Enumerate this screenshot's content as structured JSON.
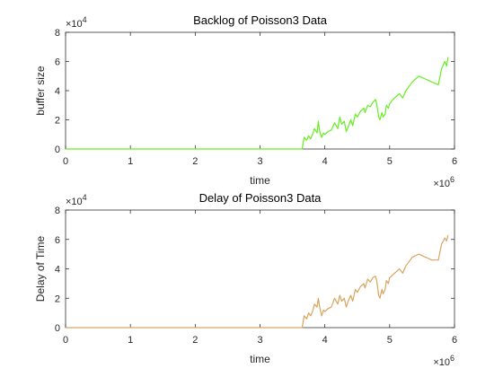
{
  "chart_data": [
    {
      "type": "line",
      "title": "Backlog of Poisson3 Data",
      "xlabel": "time",
      "ylabel": "buffer size",
      "xlim": [
        0,
        6000000
      ],
      "ylim": [
        0,
        80000
      ],
      "xticks": [
        0,
        1,
        2,
        3,
        4,
        5,
        6
      ],
      "yticks": [
        0,
        2,
        4,
        6,
        8
      ],
      "x_multiplier": "×10",
      "x_exponent": "6",
      "y_multiplier": "×10",
      "y_exponent": "4",
      "grid": false,
      "color": "#66ee22",
      "series": [
        {
          "x": [
            0,
            3000000,
            3650000,
            3680000,
            3720000,
            3750000,
            3780000,
            3810000,
            3840000,
            3880000,
            3900000,
            3920000,
            3950000,
            3980000,
            4000000,
            4050000,
            4100000,
            4150000,
            4200000,
            4230000,
            4260000,
            4300000,
            4330000,
            4360000,
            4400000,
            4430000,
            4470000,
            4500000,
            4550000,
            4600000,
            4620000,
            4660000,
            4700000,
            4740000,
            4780000,
            4800000,
            4830000,
            4850000,
            4880000,
            4900000,
            4930000,
            4950000,
            4980000,
            5000000,
            5050000,
            5100000,
            5150000,
            5200000,
            5250000,
            5300000,
            5350000,
            5400000,
            5450000,
            5500000,
            5550000,
            5600000,
            5650000,
            5700000,
            5750000,
            5800000,
            5830000,
            5850000,
            5880000,
            5900000
          ],
          "y": [
            0,
            0,
            0,
            8000,
            6000,
            9000,
            7000,
            10000,
            14000,
            11000,
            19000,
            12000,
            8000,
            11000,
            10000,
            12000,
            13000,
            18000,
            14000,
            22000,
            17000,
            19000,
            12000,
            15000,
            20000,
            16000,
            24000,
            22000,
            26000,
            28000,
            25000,
            30000,
            29000,
            32000,
            34000,
            31000,
            22000,
            20000,
            25000,
            22000,
            24000,
            30000,
            28000,
            31000,
            34000,
            36000,
            38000,
            35000,
            40000,
            43000,
            46000,
            48000,
            50000,
            49000,
            48000,
            47000,
            46000,
            45000,
            44000,
            55000,
            58000,
            60000,
            57000,
            63000
          ]
        }
      ]
    },
    {
      "type": "line",
      "title": "Delay of Poisson3 Data",
      "xlabel": "time",
      "ylabel": "Delay of Time",
      "xlim": [
        0,
        6000000
      ],
      "ylim": [
        0,
        80000
      ],
      "xticks": [
        0,
        1,
        2,
        3,
        4,
        5,
        6
      ],
      "yticks": [
        0,
        2,
        4,
        6,
        8
      ],
      "x_multiplier": "×10",
      "x_exponent": "6",
      "y_multiplier": "×10",
      "y_exponent": "4",
      "grid": false,
      "color": "#d9a560",
      "series": [
        {
          "x": [
            0,
            3000000,
            3650000,
            3680000,
            3720000,
            3750000,
            3780000,
            3810000,
            3840000,
            3880000,
            3900000,
            3920000,
            3950000,
            3980000,
            4000000,
            4050000,
            4100000,
            4150000,
            4200000,
            4230000,
            4260000,
            4300000,
            4330000,
            4360000,
            4400000,
            4430000,
            4470000,
            4500000,
            4550000,
            4600000,
            4620000,
            4660000,
            4700000,
            4740000,
            4780000,
            4800000,
            4830000,
            4850000,
            4880000,
            4900000,
            4930000,
            4950000,
            4980000,
            5000000,
            5050000,
            5100000,
            5150000,
            5200000,
            5250000,
            5300000,
            5350000,
            5400000,
            5450000,
            5500000,
            5550000,
            5600000,
            5650000,
            5700000,
            5750000,
            5800000,
            5830000,
            5850000,
            5880000,
            5900000
          ],
          "y": [
            0,
            0,
            0,
            8000,
            6000,
            10000,
            8000,
            11000,
            16000,
            14000,
            20000,
            14000,
            8000,
            12000,
            11000,
            13000,
            14000,
            20000,
            16000,
            22000,
            18000,
            20000,
            14000,
            18000,
            22000,
            18000,
            26000,
            24000,
            28000,
            30000,
            27000,
            33000,
            31000,
            34000,
            35000,
            32000,
            22000,
            20000,
            26000,
            23000,
            26000,
            32000,
            30000,
            34000,
            36000,
            38000,
            40000,
            37000,
            42000,
            45000,
            48000,
            49000,
            50000,
            49000,
            48000,
            47000,
            46000,
            46000,
            46000,
            57000,
            59000,
            61000,
            59000,
            63000
          ]
        }
      ]
    }
  ]
}
